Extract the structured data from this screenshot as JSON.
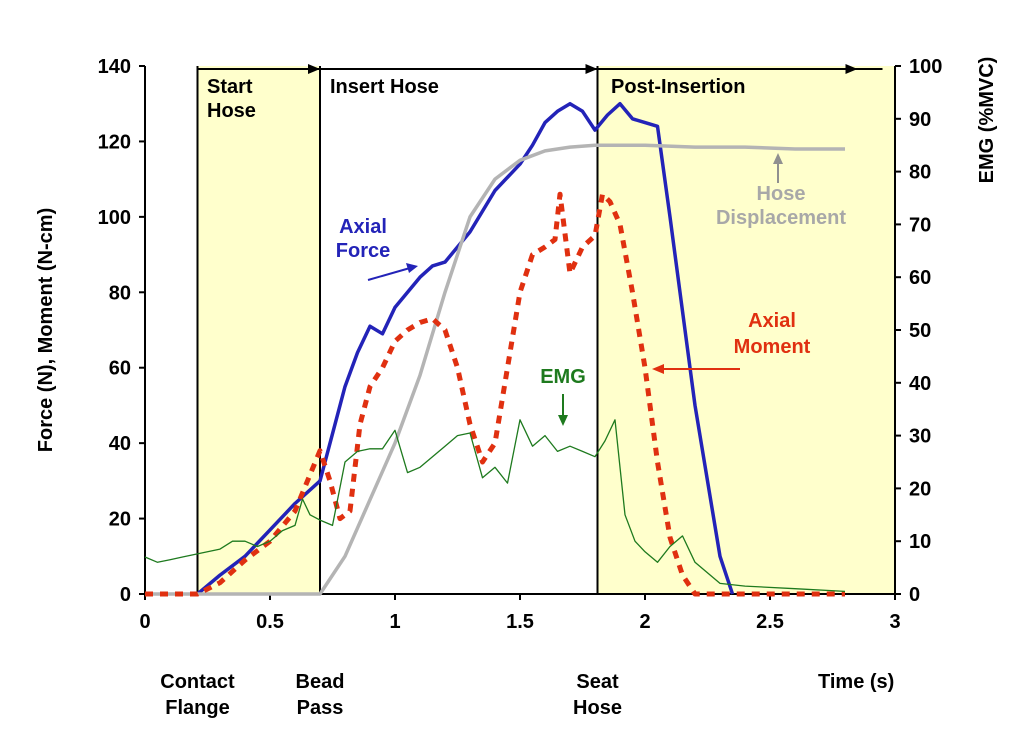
{
  "chart_data": {
    "type": "line",
    "x_axis": {
      "range": [
        0,
        3
      ],
      "ticks": [
        0,
        0.5,
        1,
        1.5,
        2,
        2.5,
        3
      ],
      "tick_labels": [
        "0",
        "0.5",
        "1",
        "1.5",
        "2",
        "2.5",
        "3"
      ],
      "label": "Time (s)"
    },
    "y_axis_left": {
      "range": [
        0,
        140
      ],
      "ticks": [
        0,
        20,
        40,
        60,
        80,
        100,
        120,
        140
      ],
      "tick_labels": [
        "0",
        "20",
        "40",
        "60",
        "80",
        "100",
        "120",
        "140"
      ],
      "label": "Force (N), Moment (N-cm)"
    },
    "y_axis_right": {
      "range": [
        0,
        100
      ],
      "ticks": [
        0,
        10,
        20,
        30,
        40,
        50,
        60,
        70,
        80,
        90,
        100
      ],
      "tick_labels": [
        "0",
        "10",
        "20",
        "30",
        "40",
        "50",
        "60",
        "70",
        "80",
        "90",
        "100"
      ],
      "label": "EMG (%MVC)"
    },
    "phases": [
      {
        "label": "Start\nHose",
        "x_start": 0.21,
        "x_end": 0.7,
        "shaded": true
      },
      {
        "label": "Insert Hose",
        "x_start": 0.7,
        "x_end": 1.81,
        "shaded": false
      },
      {
        "label": "Post-Insertion",
        "x_start": 1.81,
        "x_end": 3.0,
        "shaded": true
      }
    ],
    "events": [
      {
        "label": "Contact\nFlange",
        "x": 0.21
      },
      {
        "label": "Bead\nPass",
        "x": 0.7
      },
      {
        "label": "Seat\nHose",
        "x": 1.81
      }
    ],
    "series": [
      {
        "name": "Axial Force",
        "label_text": "Axial\nForce",
        "axis": "left",
        "color": "#2323b8",
        "style": "solid",
        "x": [
          0.21,
          0.3,
          0.4,
          0.5,
          0.6,
          0.7,
          0.8,
          0.85,
          0.9,
          0.95,
          1.0,
          1.1,
          1.15,
          1.2,
          1.3,
          1.4,
          1.5,
          1.55,
          1.6,
          1.65,
          1.7,
          1.75,
          1.8,
          1.85,
          1.9,
          1.95,
          2.0,
          2.05,
          2.1,
          2.2,
          2.3,
          2.35
        ],
        "y": [
          0,
          5,
          10,
          17,
          24,
          30,
          55,
          64,
          71,
          69,
          76,
          84,
          87,
          88,
          96,
          107,
          114,
          119,
          125,
          128,
          130,
          128,
          123,
          127,
          130,
          126,
          125,
          124,
          100,
          50,
          10,
          0
        ]
      },
      {
        "name": "Hose Displacement",
        "label_text": "Hose\nDisplacement",
        "axis": "left",
        "color": "#b4b4b4",
        "style": "solid",
        "x": [
          0,
          0.7,
          0.8,
          0.9,
          1.0,
          1.1,
          1.2,
          1.3,
          1.4,
          1.5,
          1.6,
          1.7,
          1.8,
          2.0,
          2.2,
          2.4,
          2.6,
          2.8
        ],
        "y": [
          0,
          0,
          10,
          25,
          40,
          58,
          80,
          100,
          110,
          115,
          117.5,
          118.5,
          119,
          119,
          118.5,
          118.5,
          118,
          118
        ]
      },
      {
        "name": "Axial Moment",
        "label_text": "Axial\nMoment",
        "axis": "left",
        "color": "#e03010",
        "style": "dashed",
        "x": [
          0,
          0.21,
          0.3,
          0.4,
          0.5,
          0.6,
          0.7,
          0.74,
          0.78,
          0.82,
          0.86,
          0.9,
          0.95,
          1.0,
          1.05,
          1.1,
          1.15,
          1.2,
          1.25,
          1.3,
          1.35,
          1.4,
          1.45,
          1.5,
          1.55,
          1.6,
          1.64,
          1.66,
          1.7,
          1.75,
          1.8,
          1.83,
          1.86,
          1.9,
          1.95,
          2.0,
          2.05,
          2.1,
          2.15,
          2.2,
          2.3,
          2.4,
          2.8
        ],
        "y": [
          0,
          0,
          3,
          9,
          14,
          22,
          38,
          30,
          20,
          22,
          45,
          55,
          60,
          67,
          70,
          72,
          73,
          70,
          60,
          45,
          35,
          40,
          60,
          80,
          90,
          92,
          94,
          106,
          85,
          92,
          95,
          106,
          104,
          98,
          80,
          60,
          35,
          15,
          5,
          0,
          0,
          0,
          0
        ]
      },
      {
        "name": "EMG",
        "label_text": "EMG",
        "axis": "right",
        "color": "#1e7a1e",
        "style": "thin",
        "x": [
          0,
          0.05,
          0.1,
          0.15,
          0.2,
          0.3,
          0.35,
          0.4,
          0.45,
          0.5,
          0.55,
          0.6,
          0.63,
          0.66,
          0.7,
          0.75,
          0.8,
          0.85,
          0.9,
          0.95,
          1.0,
          1.05,
          1.1,
          1.15,
          1.2,
          1.25,
          1.3,
          1.35,
          1.4,
          1.45,
          1.5,
          1.55,
          1.6,
          1.65,
          1.7,
          1.75,
          1.8,
          1.84,
          1.88,
          1.92,
          1.96,
          2.0,
          2.05,
          2.1,
          2.15,
          2.2,
          2.3,
          2.4,
          2.6,
          2.8
        ],
        "y": [
          7,
          6,
          6.5,
          7,
          7.5,
          8.5,
          10,
          10,
          9,
          10,
          12,
          13,
          18,
          15,
          14,
          13,
          25,
          27,
          27.5,
          27.5,
          31,
          23,
          24,
          26,
          28,
          30,
          30.5,
          22,
          24,
          21,
          33,
          28,
          30,
          27,
          28,
          27,
          26,
          29,
          33,
          15,
          10,
          8,
          6,
          9,
          11,
          6,
          2,
          1.5,
          1,
          0.5
        ]
      }
    ],
    "annotations": [
      {
        "text": "Axial\nForce",
        "series": "Axial Force",
        "color": "#2323b8"
      },
      {
        "text": "Hose\nDisplacement",
        "series": "Hose Displacement",
        "color": "#a8a8a8"
      },
      {
        "text": "Axial\nMoment",
        "series": "Axial Moment",
        "color": "#e03010"
      },
      {
        "text": "EMG",
        "series": "EMG",
        "color": "#1e7a1e"
      }
    ],
    "shade_color": "#ffffcc"
  }
}
